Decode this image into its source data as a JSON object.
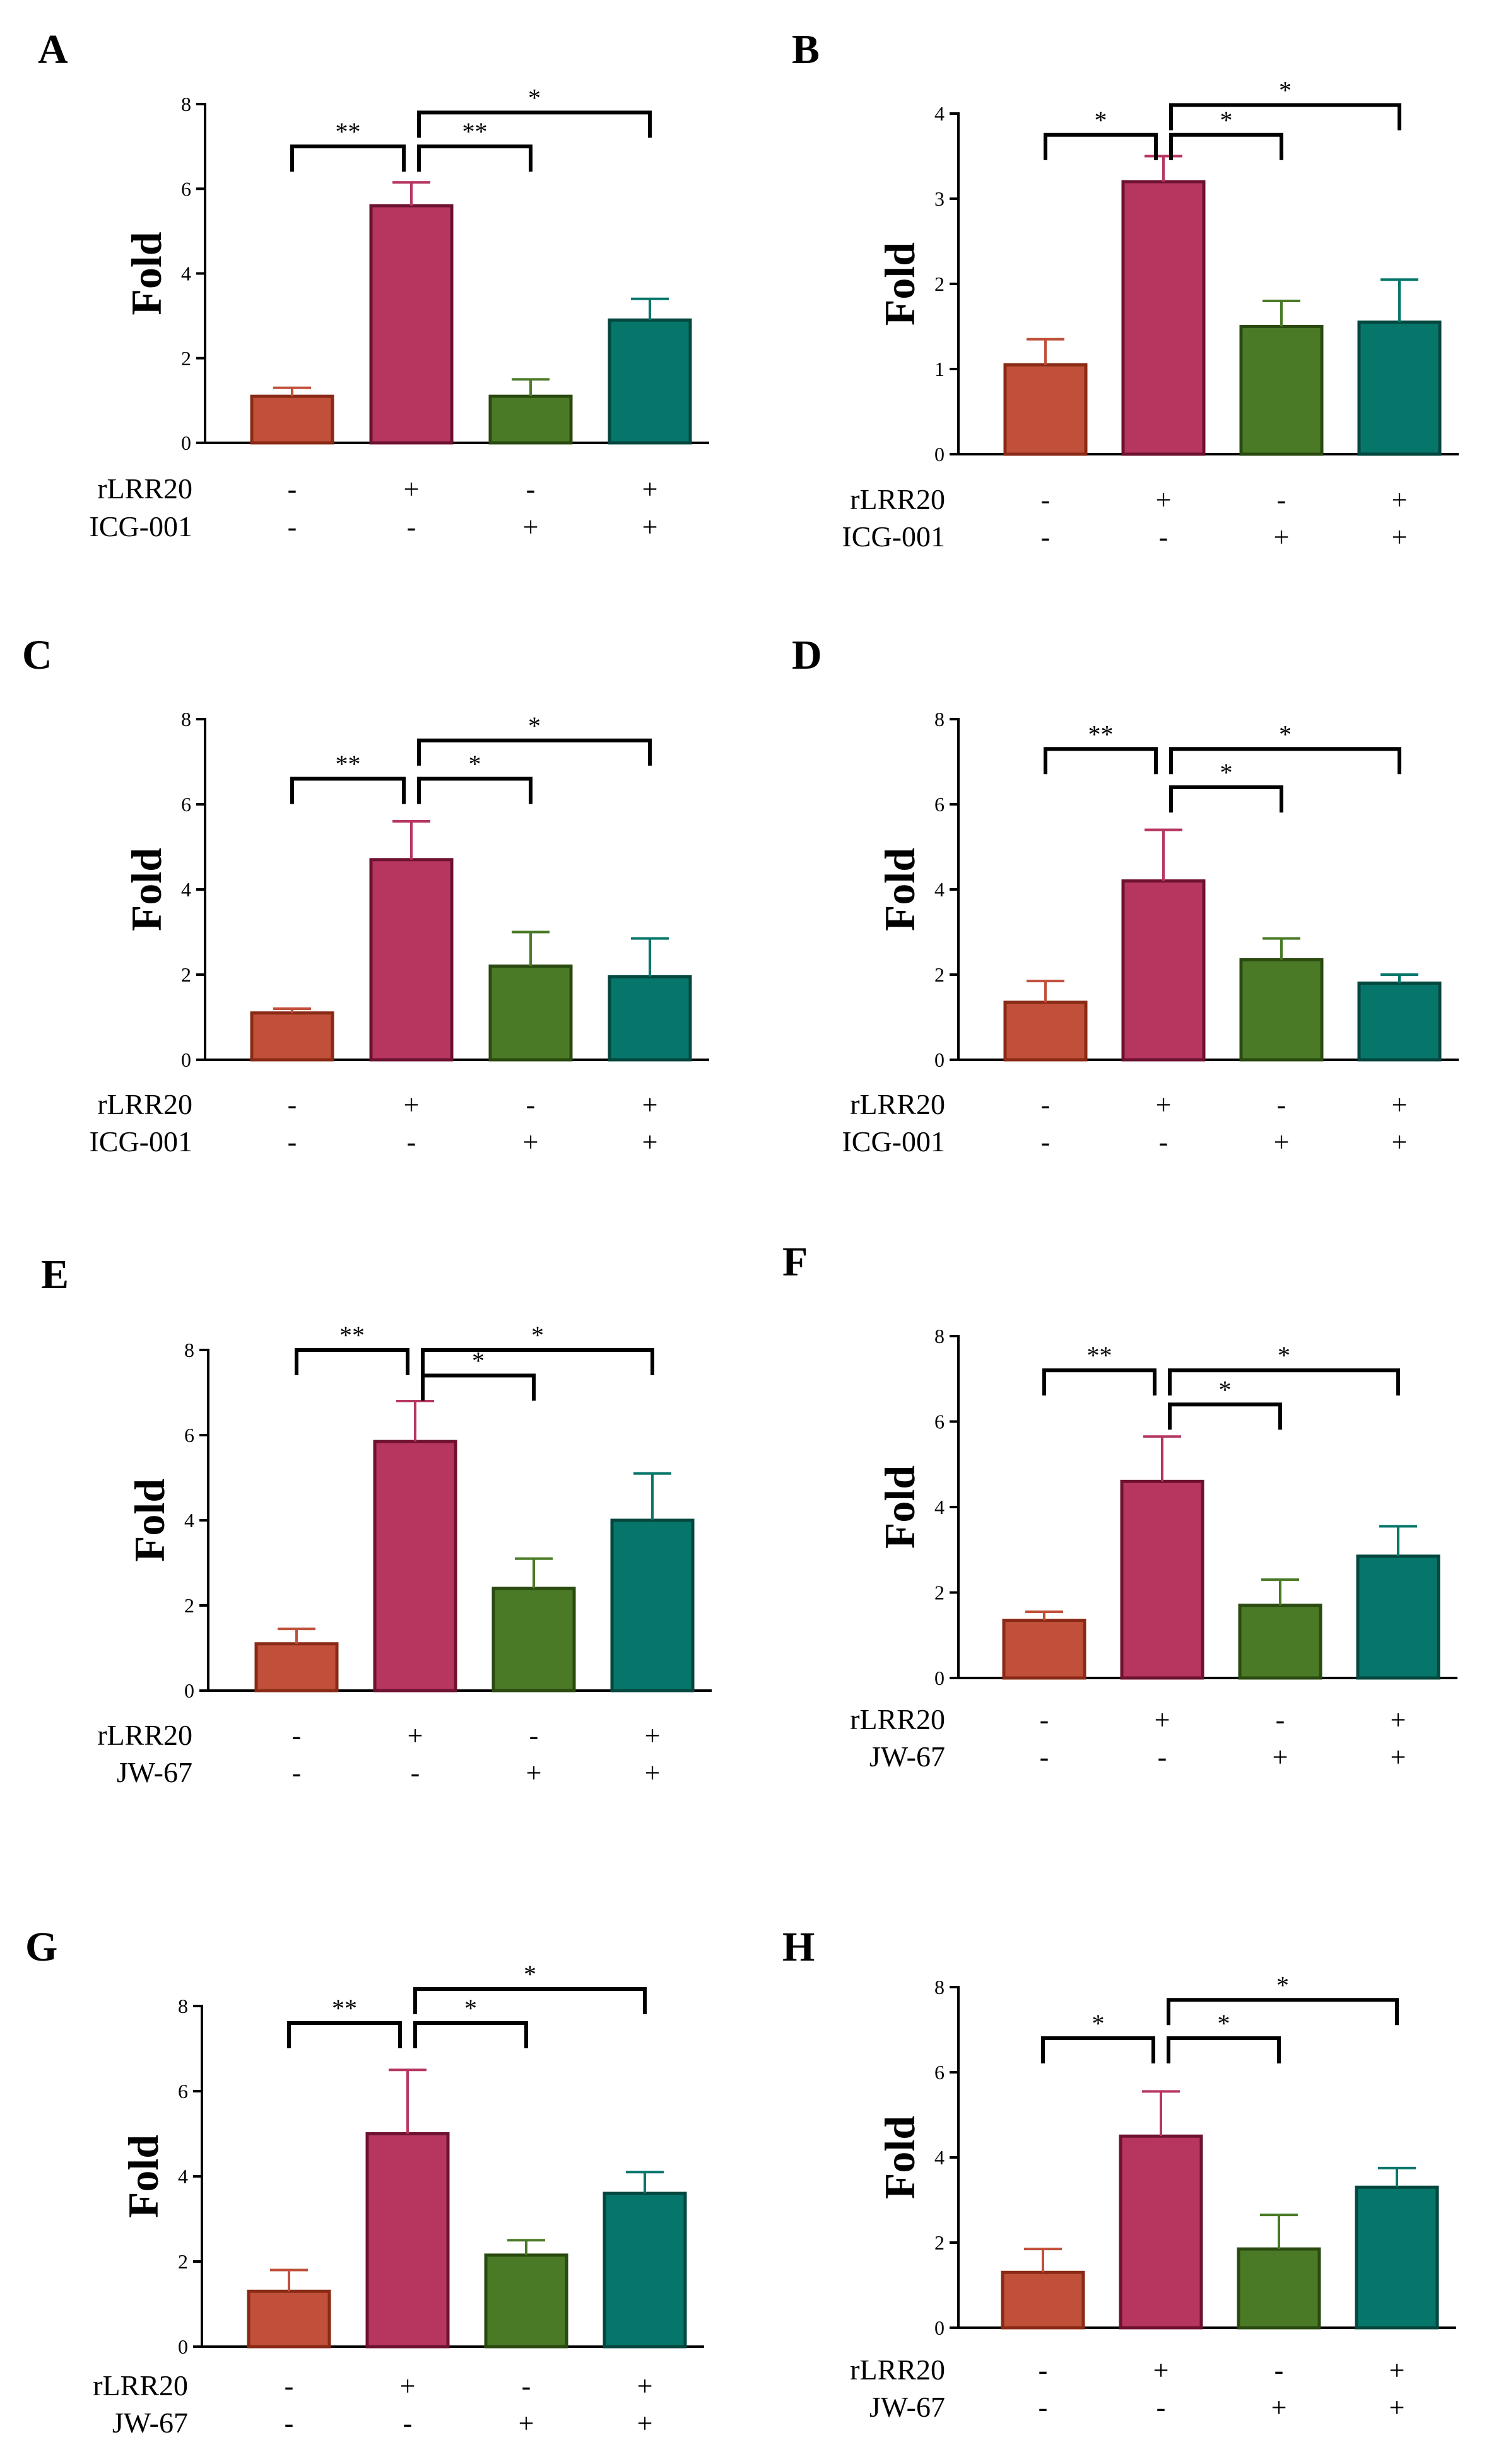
{
  "figure": {
    "colors": {
      "control": "#c0503a",
      "rLRR20": "#b6365f",
      "inhibitor": "#4a7a26",
      "combined": "#06766a",
      "axis": "#000000"
    },
    "group_row_labels": [
      "rLRR20",
      "ICG-001",
      "JW-67"
    ]
  },
  "chart_data": [
    {
      "panel": "A",
      "type": "bar",
      "ylabel": "Fold",
      "ylim": [
        0,
        8
      ],
      "yticks": [
        0,
        2,
        4,
        6,
        8
      ],
      "groups": [
        "control",
        "rLRR20",
        "inhibitor",
        "rLRR20+inhibitor"
      ],
      "values": [
        1.1,
        5.6,
        1.1,
        2.9
      ],
      "errors": [
        0.2,
        0.55,
        0.4,
        0.5
      ],
      "factors": [
        {
          "name": "rLRR20",
          "signs": [
            "-",
            "+",
            "-",
            "+"
          ]
        },
        {
          "name": "ICG-001",
          "signs": [
            "-",
            "-",
            "+",
            "+"
          ]
        }
      ],
      "significance": [
        {
          "from": 0,
          "to": 1,
          "label": "**",
          "level": 7.0
        },
        {
          "from": 1,
          "to": 2,
          "label": "**",
          "level": 7.0
        },
        {
          "from": 1,
          "to": 3,
          "label": "*",
          "level": 7.8
        }
      ]
    },
    {
      "panel": "B",
      "type": "bar",
      "ylabel": "Fold",
      "ylim": [
        0,
        4
      ],
      "yticks": [
        0,
        1,
        2,
        3,
        4
      ],
      "groups": [
        "control",
        "rLRR20",
        "inhibitor",
        "rLRR20+inhibitor"
      ],
      "values": [
        1.05,
        3.2,
        1.5,
        1.55
      ],
      "errors": [
        0.3,
        0.3,
        0.3,
        0.5
      ],
      "factors": [
        {
          "name": "rLRR20",
          "signs": [
            "-",
            "+",
            "-",
            "+"
          ]
        },
        {
          "name": "ICG-001",
          "signs": [
            "-",
            "-",
            "+",
            "+"
          ]
        }
      ],
      "significance": [
        {
          "from": 0,
          "to": 1,
          "label": "*",
          "level": 3.75
        },
        {
          "from": 1,
          "to": 2,
          "label": "*",
          "level": 3.75
        },
        {
          "from": 1,
          "to": 3,
          "label": "*",
          "level": 4.1
        }
      ]
    },
    {
      "panel": "C",
      "type": "bar",
      "ylabel": "Fold",
      "ylim": [
        0,
        8
      ],
      "yticks": [
        0,
        2,
        4,
        6,
        8
      ],
      "groups": [
        "control",
        "rLRR20",
        "inhibitor",
        "rLRR20+inhibitor"
      ],
      "values": [
        1.1,
        4.7,
        2.2,
        1.95
      ],
      "errors": [
        0.1,
        0.9,
        0.8,
        0.9
      ],
      "factors": [
        {
          "name": "rLRR20",
          "signs": [
            "-",
            "+",
            "-",
            "+"
          ]
        },
        {
          "name": "ICG-001",
          "signs": [
            "-",
            "-",
            "+",
            "+"
          ]
        }
      ],
      "significance": [
        {
          "from": 0,
          "to": 1,
          "label": "**",
          "level": 6.6
        },
        {
          "from": 1,
          "to": 2,
          "label": "*",
          "level": 6.6
        },
        {
          "from": 1,
          "to": 3,
          "label": "*",
          "level": 7.5
        }
      ]
    },
    {
      "panel": "D",
      "type": "bar",
      "ylabel": "Fold",
      "ylim": [
        0,
        8
      ],
      "yticks": [
        0,
        2,
        4,
        6,
        8
      ],
      "groups": [
        "control",
        "rLRR20",
        "inhibitor",
        "rLRR20+inhibitor"
      ],
      "values": [
        1.35,
        4.2,
        2.35,
        1.8
      ],
      "errors": [
        0.5,
        1.2,
        0.5,
        0.2
      ],
      "factors": [
        {
          "name": "rLRR20",
          "signs": [
            "-",
            "+",
            "-",
            "+"
          ]
        },
        {
          "name": "ICG-001",
          "signs": [
            "-",
            "-",
            "+",
            "+"
          ]
        }
      ],
      "significance": [
        {
          "from": 0,
          "to": 1,
          "label": "**",
          "level": 7.3
        },
        {
          "from": 1,
          "to": 2,
          "label": "*",
          "level": 6.4
        },
        {
          "from": 1,
          "to": 3,
          "label": "*",
          "level": 7.3
        }
      ]
    },
    {
      "panel": "E",
      "type": "bar",
      "ylabel": "Fold",
      "ylim": [
        0,
        8
      ],
      "yticks": [
        0,
        2,
        4,
        6,
        8
      ],
      "groups": [
        "control",
        "rLRR20",
        "inhibitor",
        "rLRR20+inhibitor"
      ],
      "values": [
        1.1,
        5.85,
        2.4,
        4.0
      ],
      "errors": [
        0.35,
        0.95,
        0.7,
        1.1
      ],
      "factors": [
        {
          "name": "rLRR20",
          "signs": [
            "-",
            "+",
            "-",
            "+"
          ]
        },
        {
          "name": "JW-67",
          "signs": [
            "-",
            "-",
            "+",
            "+"
          ]
        }
      ],
      "significance": [
        {
          "from": 0,
          "to": 1,
          "label": "**",
          "level": 8.0
        },
        {
          "from": 1,
          "to": 2,
          "label": "*",
          "level": 7.4
        },
        {
          "from": 1,
          "to": 3,
          "label": "*",
          "level": 8.0
        }
      ]
    },
    {
      "panel": "F",
      "type": "bar",
      "ylabel": "Fold",
      "ylim": [
        0,
        8
      ],
      "yticks": [
        0,
        2,
        4,
        6,
        8
      ],
      "groups": [
        "control",
        "rLRR20",
        "inhibitor",
        "rLRR20+inhibitor"
      ],
      "values": [
        1.35,
        4.6,
        1.7,
        2.85
      ],
      "errors": [
        0.2,
        1.05,
        0.6,
        0.7
      ],
      "factors": [
        {
          "name": "rLRR20",
          "signs": [
            "-",
            "+",
            "-",
            "+"
          ]
        },
        {
          "name": "JW-67",
          "signs": [
            "-",
            "-",
            "+",
            "+"
          ]
        }
      ],
      "significance": [
        {
          "from": 0,
          "to": 1,
          "label": "**",
          "level": 7.2
        },
        {
          "from": 1,
          "to": 2,
          "label": "*",
          "level": 6.4
        },
        {
          "from": 1,
          "to": 3,
          "label": "*",
          "level": 7.2
        }
      ]
    },
    {
      "panel": "G",
      "type": "bar",
      "ylabel": "Fold",
      "ylim": [
        0,
        8
      ],
      "yticks": [
        0,
        2,
        4,
        6,
        8
      ],
      "groups": [
        "control",
        "rLRR20",
        "inhibitor",
        "rLRR20+inhibitor"
      ],
      "values": [
        1.3,
        5.0,
        2.15,
        3.6
      ],
      "errors": [
        0.5,
        1.5,
        0.35,
        0.5
      ],
      "factors": [
        {
          "name": "rLRR20",
          "signs": [
            "-",
            "+",
            "-",
            "+"
          ]
        },
        {
          "name": "JW-67",
          "signs": [
            "-",
            "-",
            "+",
            "+"
          ]
        }
      ],
      "significance": [
        {
          "from": 0,
          "to": 1,
          "label": "**",
          "level": 7.6
        },
        {
          "from": 1,
          "to": 2,
          "label": "*",
          "level": 7.6
        },
        {
          "from": 1,
          "to": 3,
          "label": "*",
          "level": 8.4
        }
      ]
    },
    {
      "panel": "H",
      "type": "bar",
      "ylabel": "Fold",
      "ylim": [
        0,
        8
      ],
      "yticks": [
        0,
        2,
        4,
        6,
        8
      ],
      "groups": [
        "control",
        "rLRR20",
        "inhibitor",
        "rLRR20+inhibitor"
      ],
      "values": [
        1.3,
        4.5,
        1.85,
        3.3
      ],
      "errors": [
        0.55,
        1.05,
        0.8,
        0.45
      ],
      "factors": [
        {
          "name": "rLRR20",
          "signs": [
            "-",
            "+",
            "-",
            "+"
          ]
        },
        {
          "name": "JW-67",
          "signs": [
            "-",
            "-",
            "+",
            "+"
          ]
        }
      ],
      "significance": [
        {
          "from": 0,
          "to": 1,
          "label": "*",
          "level": 6.8
        },
        {
          "from": 1,
          "to": 2,
          "label": "*",
          "level": 6.8
        },
        {
          "from": 1,
          "to": 3,
          "label": "*",
          "level": 7.7
        }
      ]
    }
  ]
}
